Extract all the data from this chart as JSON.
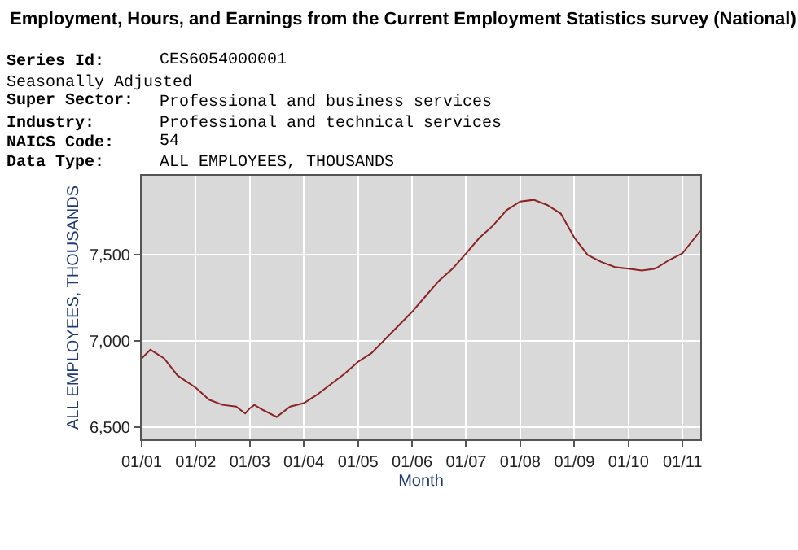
{
  "chart_data": {
    "type": "line",
    "title": "Employment, Hours, and Earnings from the Current Employment Statistics survey (National)",
    "annotations": [
      "Series Id:",
      "CES6054000001",
      "Seasonally Adjusted",
      "Super Sector:",
      "Professional and business services",
      "Industry:",
      "Professional and technical services",
      "NAICS Code:",
      "54",
      "Data Type:",
      "ALL EMPLOYEES, THOUSANDS"
    ],
    "xlabel": "Month",
    "ylabel": "ALL EMPLOYEES, THOUSANDS",
    "x": [
      "2001-01",
      "2001-03",
      "2001-06",
      "2001-09",
      "2002-01",
      "2002-04",
      "2002-07",
      "2002-10",
      "2002-12",
      "2003-01",
      "2003-02",
      "2003-04",
      "2003-07",
      "2003-10",
      "2004-01",
      "2004-04",
      "2004-07",
      "2004-10",
      "2005-01",
      "2005-04",
      "2005-07",
      "2005-10",
      "2006-01",
      "2006-04",
      "2006-07",
      "2006-10",
      "2007-01",
      "2007-04",
      "2007-07",
      "2007-10",
      "2008-01",
      "2008-04",
      "2008-07",
      "2008-10",
      "2009-01",
      "2009-04",
      "2009-07",
      "2009-10",
      "2010-01",
      "2010-04",
      "2010-07",
      "2010-10",
      "2011-01",
      "2011-05"
    ],
    "series": [
      {
        "color": "#8b2323",
        "values": [
          6900,
          6950,
          6900,
          6800,
          6730,
          6660,
          6630,
          6620,
          6580,
          6610,
          6630,
          6600,
          6560,
          6620,
          6640,
          6690,
          6750,
          6810,
          6880,
          6930,
          7010,
          7090,
          7170,
          7260,
          7350,
          7420,
          7510,
          7600,
          7670,
          7760,
          7810,
          7820,
          7790,
          7740,
          7600,
          7500,
          7460,
          7430,
          7420,
          7410,
          7420,
          7470,
          7510,
          7640
        ]
      }
    ],
    "xlim": [
      "2001-01",
      "2011-05"
    ],
    "xticks": [
      {
        "value": "2001-01",
        "label": "01/01"
      },
      {
        "value": "2002-01",
        "label": "01/02"
      },
      {
        "value": "2003-01",
        "label": "01/03"
      },
      {
        "value": "2004-01",
        "label": "01/04"
      },
      {
        "value": "2005-01",
        "label": "01/05"
      },
      {
        "value": "2006-01",
        "label": "01/06"
      },
      {
        "value": "2007-01",
        "label": "01/07"
      },
      {
        "value": "2008-01",
        "label": "01/08"
      },
      {
        "value": "2009-01",
        "label": "01/09"
      },
      {
        "value": "2010-01",
        "label": "01/10"
      },
      {
        "value": "2011-01",
        "label": "01/11"
      }
    ],
    "ylim": [
      6430,
      7960
    ],
    "yticks": [
      {
        "value": 6500,
        "label": "6,500"
      },
      {
        "value": 7000,
        "label": "7,000"
      },
      {
        "value": 7500,
        "label": "7,500"
      }
    ],
    "grid": true,
    "legend": false,
    "marker": "none",
    "line_style": "solid"
  }
}
